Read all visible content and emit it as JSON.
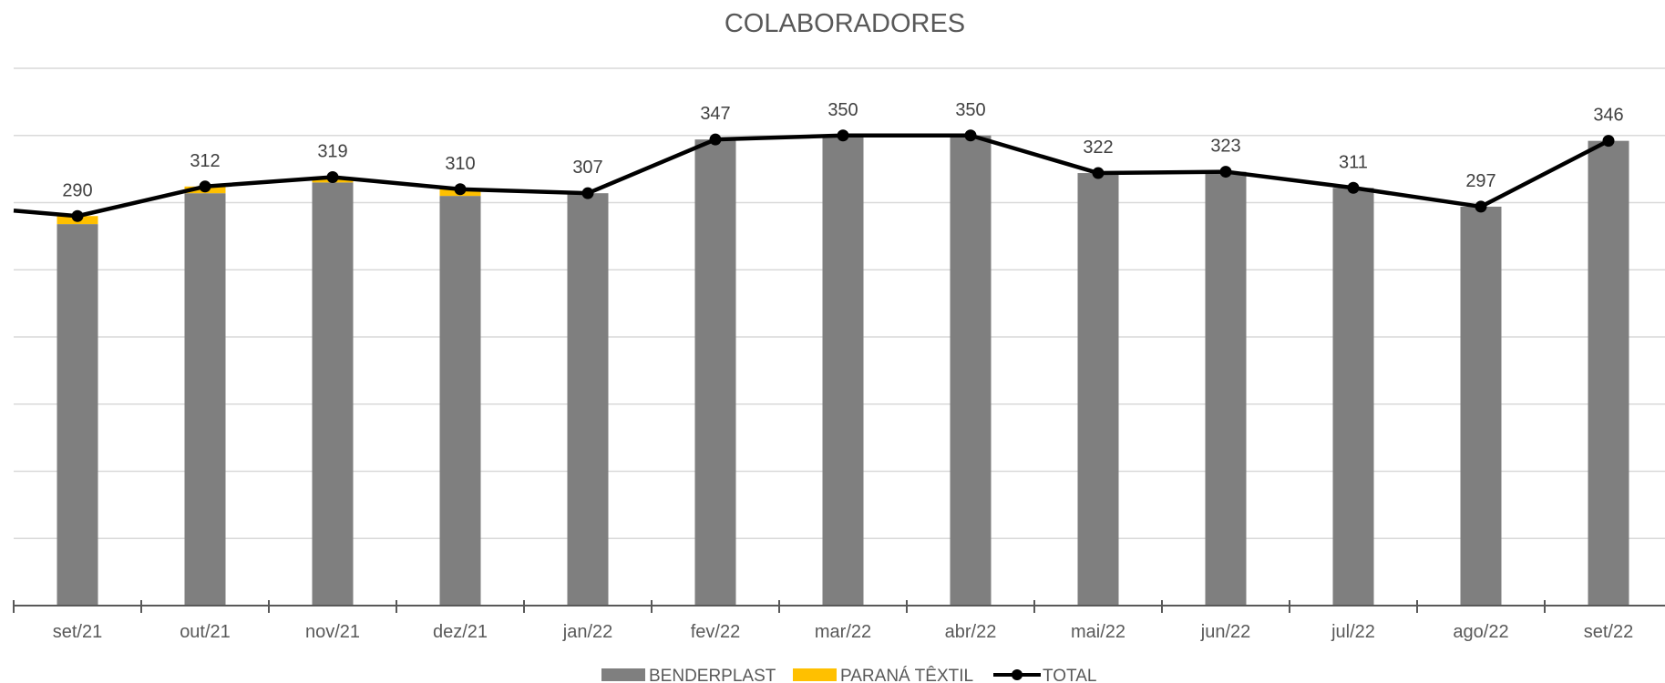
{
  "chart_data": {
    "type": "bar",
    "title": "COLABORADORES",
    "xlabel": "",
    "ylabel": "",
    "categories": [
      "set/21",
      "out/21",
      "nov/21",
      "dez/21",
      "jan/22",
      "fev/22",
      "mar/22",
      "abr/22",
      "mai/22",
      "jun/22",
      "jul/22",
      "ago/22",
      "set/22"
    ],
    "series": [
      {
        "name": "BENDERPLAST",
        "kind": "bar-stacked",
        "color": "#7f7f7f",
        "values": [
          284,
          307,
          315,
          305,
          307,
          347,
          350,
          350,
          322,
          323,
          311,
          297,
          346
        ]
      },
      {
        "name": "PARANÁ TÊXTIL",
        "kind": "bar-stacked",
        "color": "#ffc000",
        "values": [
          6,
          5,
          4,
          5,
          0,
          0,
          0,
          0,
          0,
          0,
          0,
          0,
          0
        ]
      },
      {
        "name": "TOTAL",
        "kind": "line",
        "color": "#000000",
        "values": [
          290,
          312,
          319,
          310,
          307,
          347,
          350,
          350,
          322,
          323,
          311,
          297,
          346
        ],
        "data_labels": [
          "290",
          "312",
          "319",
          "310",
          "307",
          "347",
          "350",
          "350",
          "322",
          "323",
          "311",
          "297",
          "346"
        ]
      }
    ],
    "ylim": [
      0,
      400
    ],
    "grid": true,
    "legend_position": "bottom"
  }
}
